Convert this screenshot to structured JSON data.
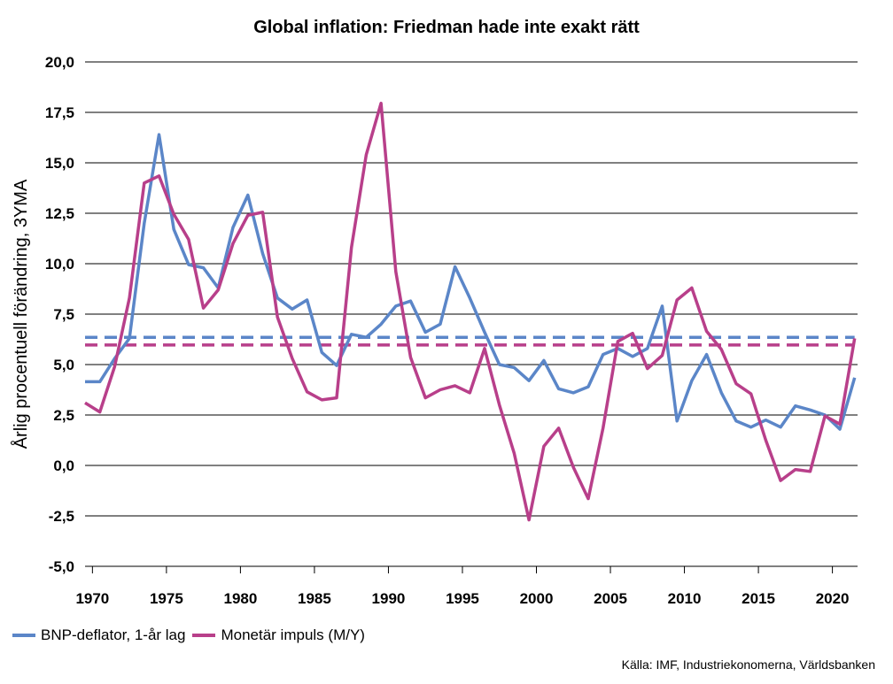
{
  "chart_data": {
    "type": "line",
    "title": "Global inflation: Friedman hade inte exakt rätt",
    "ylabel": "Årlig procentuell förändring, 3YMA",
    "xlabel": "",
    "ylim": [
      -5,
      20
    ],
    "xlim": [
      1969.5,
      2021.7
    ],
    "y_ticks": [
      "-5,0",
      "-2,5",
      "0,0",
      "2,5",
      "5,0",
      "7,5",
      "10,0",
      "12,5",
      "15,0",
      "17,5",
      "20,0"
    ],
    "y_tick_values": [
      -5,
      -2.5,
      0,
      2.5,
      5,
      7.5,
      10,
      12.5,
      15,
      17.5,
      20
    ],
    "x_ticks": [
      "1970",
      "1975",
      "1980",
      "1985",
      "1990",
      "1995",
      "2000",
      "2005",
      "2010",
      "2015",
      "2020"
    ],
    "x_tick_values": [
      1970,
      1975,
      1980,
      1985,
      1990,
      1995,
      2000,
      2005,
      2010,
      2015,
      2020
    ],
    "grid": "horizontal",
    "legend_position": "bottom-left",
    "series": [
      {
        "name": "BNP-deflator, 1-år lag",
        "color": "#5b86c8",
        "x": [
          1969.5,
          1970.5,
          1971.5,
          1972.5,
          1973.5,
          1974.5,
          1975.5,
          1976.5,
          1977.5,
          1978.5,
          1979.5,
          1980.5,
          1981.5,
          1982.5,
          1983.5,
          1984.5,
          1985.5,
          1986.5,
          1987.5,
          1988.5,
          1989.5,
          1990.5,
          1991.5,
          1992.5,
          1993.5,
          1994.5,
          1995.5,
          1996.5,
          1997.5,
          1998.5,
          1999.5,
          2000.5,
          2001.5,
          2002.5,
          2003.5,
          2004.5,
          2005.5,
          2006.5,
          2007.5,
          2008.5,
          2009.5,
          2010.5,
          2011.5,
          2012.5,
          2013.5,
          2014.5,
          2015.5,
          2016.5,
          2017.5,
          2018.5,
          2019.5,
          2020.5,
          2021.5
        ],
        "values": [
          4.15,
          4.15,
          5.3,
          6.3,
          12.0,
          16.4,
          11.7,
          9.95,
          9.8,
          8.8,
          11.8,
          13.4,
          10.5,
          8.3,
          7.75,
          8.2,
          5.6,
          4.95,
          6.5,
          6.35,
          7.0,
          7.9,
          8.15,
          6.6,
          7.0,
          9.85,
          8.3,
          6.6,
          5.0,
          4.85,
          4.2,
          5.2,
          3.8,
          3.6,
          3.9,
          5.5,
          5.8,
          5.4,
          5.8,
          7.9,
          2.2,
          4.2,
          5.5,
          3.6,
          2.2,
          1.9,
          2.25,
          1.9,
          2.95,
          2.75,
          2.5,
          1.8,
          4.35
        ]
      },
      {
        "name": "Monetär impuls (M/Y)",
        "color": "#b83f8a",
        "x": [
          1969.5,
          1970.5,
          1971.5,
          1972.5,
          1973.5,
          1974.5,
          1975.5,
          1976.5,
          1977.5,
          1978.5,
          1979.5,
          1980.5,
          1981.5,
          1982.5,
          1983.5,
          1984.5,
          1985.5,
          1986.5,
          1987.5,
          1988.5,
          1989.5,
          1990.5,
          1991.5,
          1992.5,
          1993.5,
          1994.5,
          1995.5,
          1996.5,
          1997.5,
          1998.5,
          1999.5,
          2000.5,
          2001.5,
          2002.5,
          2003.5,
          2004.5,
          2005.5,
          2006.5,
          2007.5,
          2008.5,
          2009.5,
          2010.5,
          2011.5,
          2012.5,
          2013.5,
          2014.5,
          2015.5,
          2016.5,
          2017.5,
          2018.5,
          2019.5,
          2020.5,
          2021.5
        ],
        "values": [
          3.1,
          2.65,
          4.9,
          8.3,
          14.0,
          14.35,
          12.45,
          11.2,
          7.8,
          8.7,
          11.0,
          12.4,
          12.55,
          7.35,
          5.3,
          3.65,
          3.25,
          3.35,
          10.8,
          15.4,
          17.95,
          9.6,
          5.35,
          3.35,
          3.75,
          3.95,
          3.6,
          5.8,
          3.0,
          0.6,
          -2.7,
          0.95,
          1.85,
          -0.1,
          -1.65,
          1.85,
          6.15,
          6.55,
          4.8,
          5.45,
          8.2,
          8.8,
          6.65,
          5.75,
          4.05,
          3.55,
          1.25,
          -0.75,
          -0.2,
          -0.3,
          2.45,
          2.05,
          6.3
        ]
      }
    ],
    "averages": [
      {
        "series": "BNP-deflator, 1-år lag",
        "value": 6.35,
        "color": "#5b86c8",
        "style": "dashed"
      },
      {
        "series": "Monetär impuls (M/Y)",
        "value": 5.97,
        "color": "#b83f8a",
        "style": "dashed"
      }
    ]
  },
  "source": "Källa: IMF, Industriekonomerna, Världsbanken"
}
